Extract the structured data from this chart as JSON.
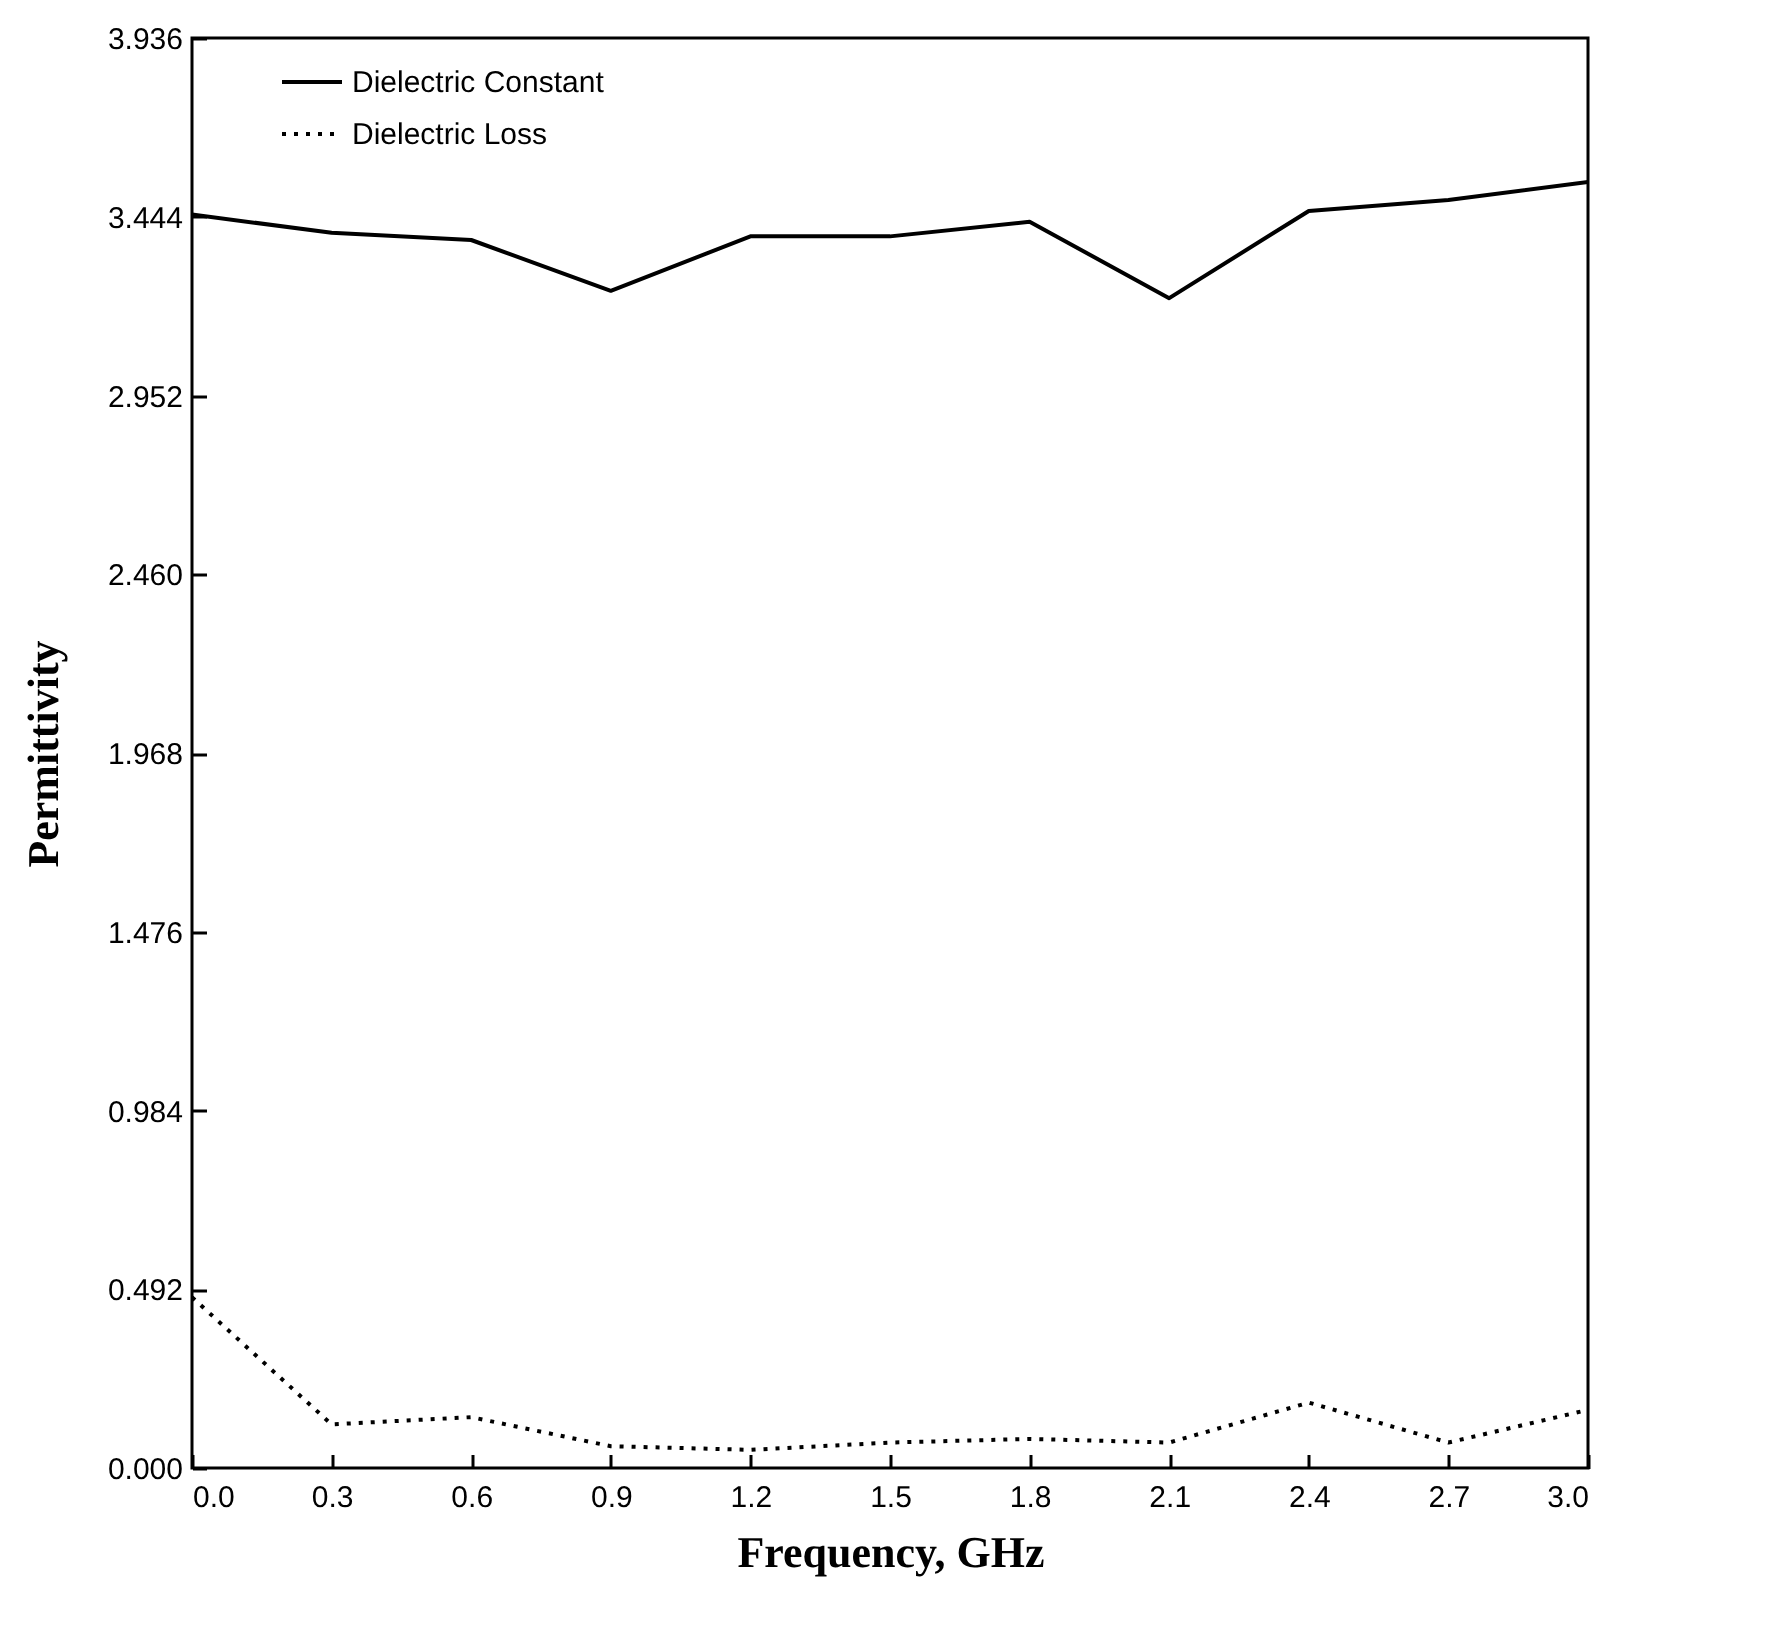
{
  "chart_data": {
    "type": "line",
    "xlabel": "Frequency, GHz",
    "ylabel": "Permittivity",
    "x": [
      0,
      0.3,
      0.6,
      0.9,
      1.2,
      1.5,
      1.8,
      2.1,
      2.4,
      2.7,
      3.0
    ],
    "series": [
      {
        "name": "Dielectric Constant",
        "color": "#000000",
        "line_style": "solid",
        "values": [
          3.45,
          3.4,
          3.38,
          3.24,
          3.39,
          3.39,
          3.43,
          3.22,
          3.46,
          3.49,
          3.54
        ]
      },
      {
        "name": "Dielectric Loss",
        "color": "#000000",
        "line_style": "dotted",
        "values": [
          0.47,
          0.12,
          0.14,
          0.06,
          0.05,
          0.07,
          0.08,
          0.07,
          0.18,
          0.07,
          0.16
        ]
      }
    ],
    "xlim": [
      0,
      3.0
    ],
    "xticks": [
      {
        "value": 0,
        "label": "0.0"
      },
      {
        "value": 0.3,
        "label": "0.3"
      },
      {
        "value": 0.6,
        "label": "0.6"
      },
      {
        "value": 0.9,
        "label": "0.9"
      },
      {
        "value": 1.2,
        "label": "1.2"
      },
      {
        "value": 1.5,
        "label": "1.5"
      },
      {
        "value": 1.8,
        "label": "1.8"
      },
      {
        "value": 2.1,
        "label": "2.1"
      },
      {
        "value": 2.4,
        "label": "2.4"
      },
      {
        "value": 2.7,
        "label": "2.7"
      },
      {
        "value": 3.0,
        "label": "3.0"
      }
    ],
    "ylim": [
      0,
      3.936
    ],
    "yticks": [
      {
        "value": 0,
        "label": "0.000"
      },
      {
        "value": 0.492,
        "label": "0.492"
      },
      {
        "value": 0.984,
        "label": "0.984"
      },
      {
        "value": 1.476,
        "label": "1.476"
      },
      {
        "value": 1.968,
        "label": "1.968"
      },
      {
        "value": 2.46,
        "label": "2.460"
      },
      {
        "value": 2.952,
        "label": "2.952"
      },
      {
        "value": 3.444,
        "label": "3.444"
      },
      {
        "value": 3.936,
        "label": "3.936"
      }
    ],
    "legend": "top left",
    "grid": false,
    "marker": "none"
  }
}
